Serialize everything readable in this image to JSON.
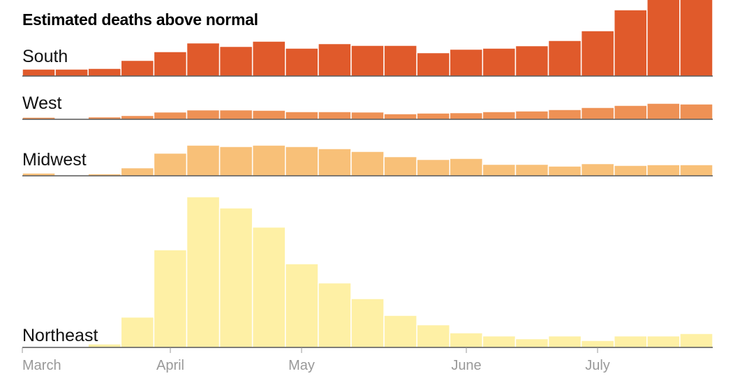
{
  "chart_data": {
    "type": "bar",
    "title": "Estimated deaths above normal",
    "x_ticks": [
      "March",
      "April",
      "May",
      "June",
      "July"
    ],
    "bins": 21,
    "y_unit_note": "",
    "series": [
      {
        "name": "South",
        "color": "#e05a2b",
        "values": [
          2.0,
          2.0,
          2.2,
          4.5,
          7.0,
          9.5,
          8.5,
          10.0,
          8.0,
          9.3,
          8.8,
          8.8,
          6.7,
          7.7,
          8.0,
          8.7,
          10.2,
          13.0,
          19.0,
          22.0,
          23.0
        ]
      },
      {
        "name": "West",
        "color": "#ee9155",
        "values": [
          0.6,
          0.0,
          0.7,
          1.1,
          2.1,
          2.7,
          2.7,
          2.6,
          2.2,
          2.2,
          2.1,
          1.6,
          1.8,
          1.9,
          2.2,
          2.4,
          2.8,
          3.4,
          4.0,
          4.6,
          4.4
        ]
      },
      {
        "name": "Midwest",
        "color": "#f8c078",
        "values": [
          0.8,
          0.3,
          0.6,
          2.3,
          6.5,
          8.8,
          8.4,
          8.8,
          8.4,
          7.8,
          7.0,
          5.5,
          4.7,
          5.0,
          3.3,
          3.3,
          2.8,
          3.5,
          3.0,
          3.2,
          3.2
        ]
      },
      {
        "name": "Northeast",
        "color": "#fef0a5",
        "values": [
          0.2,
          0.3,
          1.0,
          8.7,
          28.0,
          43.2,
          40.0,
          34.5,
          24.0,
          18.5,
          14.0,
          9.2,
          6.5,
          4.2,
          3.3,
          2.5,
          3.3,
          2.0,
          3.3,
          3.3,
          4.0
        ]
      }
    ]
  }
}
